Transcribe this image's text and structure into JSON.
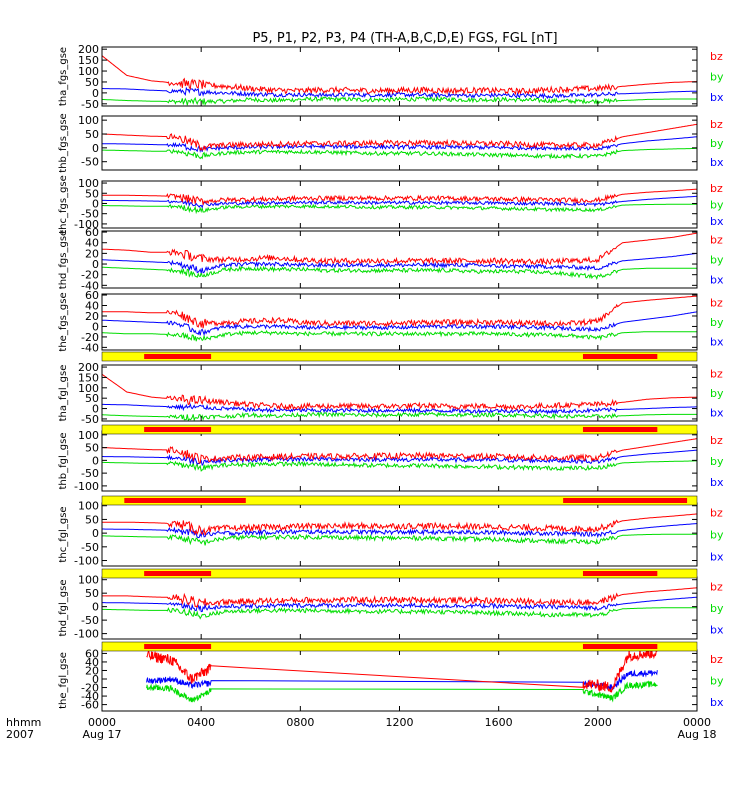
{
  "title": "P5, P1, P2, P3, P4 (TH-A,B,C,D,E) FGS, FGL [nT]",
  "time_axis": {
    "corner_label_top": "hhmm",
    "corner_label_bottom": "2007",
    "ticks": [
      {
        "hour": 0,
        "label": "0000",
        "sublabel": "Aug 17"
      },
      {
        "hour": 4,
        "label": "0400",
        "sublabel": ""
      },
      {
        "hour": 8,
        "label": "0800",
        "sublabel": ""
      },
      {
        "hour": 12,
        "label": "1200",
        "sublabel": ""
      },
      {
        "hour": 16,
        "label": "1600",
        "sublabel": ""
      },
      {
        "hour": 20,
        "label": "2000",
        "sublabel": ""
      },
      {
        "hour": 24,
        "label": "0000",
        "sublabel": "Aug 18"
      }
    ]
  },
  "colors": {
    "bx": "#0000ff",
    "by": "#00dd00",
    "bz": "#ff0000",
    "bar_bg": "#ffff00",
    "bar_fg": "#ff0000"
  },
  "legend_labels": {
    "bz": "bz",
    "by": "by",
    "bx": "bx"
  },
  "chart_data": [
    {
      "type": "line",
      "ylabel": "tha_fgs_gse",
      "ylim": [
        -60,
        210
      ],
      "yticks": [
        -50,
        0,
        50,
        100,
        150,
        200
      ],
      "series": [
        {
          "name": "bz",
          "values": [
            170,
            80,
            55,
            45,
            38,
            30,
            20,
            12,
            10,
            14,
            12,
            10,
            12,
            14,
            10,
            12,
            10,
            8,
            14,
            18,
            20,
            30,
            40,
            48,
            52
          ]
        },
        {
          "name": "by",
          "values": [
            -30,
            -35,
            -38,
            -40,
            -40,
            -38,
            -30,
            -35,
            -30,
            -28,
            -30,
            -32,
            -30,
            -28,
            -30,
            -32,
            -30,
            -32,
            -36,
            -38,
            -38,
            -35,
            -30,
            -28,
            -28
          ]
        },
        {
          "name": "bx",
          "values": [
            20,
            18,
            12,
            8,
            5,
            0,
            -5,
            -8,
            -8,
            -10,
            -8,
            -10,
            -8,
            -10,
            -10,
            -12,
            -10,
            -12,
            -14,
            -12,
            -8,
            -4,
            0,
            5,
            8
          ]
        }
      ]
    },
    {
      "type": "line",
      "ylabel": "thb_fgs_gse",
      "ylim": [
        -80,
        115
      ],
      "yticks": [
        -50,
        0,
        50,
        100
      ],
      "series": [
        {
          "name": "bz",
          "values": [
            50,
            46,
            42,
            40,
            5,
            10,
            12,
            14,
            15,
            16,
            16,
            17,
            18,
            18,
            18,
            16,
            15,
            12,
            10,
            10,
            10,
            40,
            55,
            70,
            85
          ]
        },
        {
          "name": "by",
          "values": [
            -8,
            -10,
            -12,
            -12,
            -30,
            -18,
            -15,
            -14,
            -14,
            -16,
            -18,
            -20,
            -20,
            -20,
            -22,
            -24,
            -26,
            -28,
            -30,
            -30,
            -30,
            -10,
            -6,
            -4,
            -2
          ]
        },
        {
          "name": "bx",
          "values": [
            15,
            14,
            12,
            10,
            -5,
            0,
            2,
            4,
            5,
            5,
            4,
            4,
            3,
            3,
            2,
            2,
            1,
            0,
            0,
            -2,
            -5,
            15,
            25,
            32,
            40
          ]
        }
      ]
    },
    {
      "type": "line",
      "ylabel": "thc_fgs_gse",
      "ylim": [
        -120,
        110
      ],
      "yticks": [
        -100,
        -50,
        0,
        50,
        100
      ],
      "series": [
        {
          "name": "bz",
          "values": [
            40,
            40,
            38,
            35,
            10,
            18,
            20,
            22,
            25,
            26,
            26,
            26,
            26,
            26,
            25,
            24,
            22,
            20,
            18,
            16,
            16,
            45,
            55,
            62,
            70
          ]
        },
        {
          "name": "by",
          "values": [
            -10,
            -12,
            -14,
            -14,
            -35,
            -18,
            -15,
            -14,
            -14,
            -15,
            -16,
            -18,
            -18,
            -18,
            -20,
            -22,
            -24,
            -26,
            -30,
            -30,
            -32,
            -8,
            -5,
            -4,
            -4
          ]
        },
        {
          "name": "bx",
          "values": [
            15,
            14,
            12,
            10,
            -5,
            0,
            2,
            4,
            5,
            5,
            5,
            4,
            4,
            4,
            3,
            3,
            2,
            0,
            0,
            -2,
            -5,
            10,
            20,
            28,
            35
          ]
        }
      ]
    },
    {
      "type": "line",
      "ylabel": "thd_fgs_gse",
      "ylim": [
        -45,
        62
      ],
      "yticks": [
        -40,
        -20,
        0,
        20,
        40,
        60
      ],
      "series": [
        {
          "name": "bz",
          "values": [
            28,
            26,
            22,
            22,
            10,
            8,
            10,
            12,
            8,
            6,
            6,
            6,
            6,
            6,
            6,
            6,
            6,
            5,
            4,
            6,
            8,
            40,
            45,
            50,
            58
          ]
        },
        {
          "name": "by",
          "values": [
            -6,
            -8,
            -10,
            -12,
            -22,
            -10,
            -8,
            -10,
            -10,
            -12,
            -12,
            -12,
            -12,
            -12,
            -12,
            -14,
            -14,
            -14,
            -16,
            -20,
            -24,
            -10,
            -8,
            -8,
            -8
          ]
        },
        {
          "name": "bx",
          "values": [
            8,
            6,
            4,
            2,
            -12,
            -2,
            0,
            0,
            -2,
            -2,
            -2,
            -2,
            -2,
            -2,
            -2,
            -2,
            -4,
            -4,
            -5,
            -6,
            -8,
            6,
            10,
            14,
            20
          ]
        }
      ]
    },
    {
      "type": "line",
      "ylabel": "the_fgs_gse",
      "ylim": [
        -45,
        62
      ],
      "yticks": [
        -40,
        -20,
        0,
        20,
        40,
        60
      ],
      "series": [
        {
          "name": "bz",
          "values": [
            28,
            28,
            26,
            26,
            5,
            8,
            10,
            12,
            8,
            6,
            6,
            6,
            6,
            8,
            8,
            8,
            8,
            6,
            6,
            6,
            10,
            45,
            50,
            54,
            58
          ]
        },
        {
          "name": "by",
          "values": [
            -12,
            -14,
            -14,
            -16,
            -25,
            -15,
            -12,
            -12,
            -14,
            -14,
            -14,
            -14,
            -14,
            -14,
            -14,
            -14,
            -14,
            -16,
            -16,
            -18,
            -22,
            -12,
            -10,
            -10,
            -10
          ]
        },
        {
          "name": "bx",
          "values": [
            12,
            10,
            8,
            6,
            -12,
            0,
            0,
            0,
            -2,
            -2,
            -2,
            -2,
            -2,
            0,
            0,
            0,
            0,
            -2,
            -2,
            -4,
            -6,
            8,
            14,
            20,
            28
          ]
        }
      ]
    },
    {
      "type": "line",
      "ylabel": "tha_fgl_gse",
      "ylim": [
        -60,
        210
      ],
      "yticks": [
        -50,
        0,
        50,
        100,
        150,
        200
      ],
      "series": [
        {
          "name": "bz",
          "values": [
            165,
            80,
            55,
            45,
            38,
            30,
            18,
            12,
            10,
            12,
            12,
            10,
            12,
            14,
            10,
            12,
            10,
            8,
            14,
            18,
            20,
            30,
            45,
            52,
            55
          ]
        },
        {
          "name": "by",
          "values": [
            -30,
            -35,
            -38,
            -40,
            -40,
            -38,
            -30,
            -35,
            -30,
            -28,
            -30,
            -32,
            -30,
            -28,
            -30,
            -32,
            -30,
            -32,
            -36,
            -38,
            -38,
            -35,
            -30,
            -28,
            -28
          ]
        },
        {
          "name": "bx",
          "values": [
            20,
            18,
            12,
            8,
            5,
            0,
            -5,
            -8,
            -8,
            -10,
            -8,
            -10,
            -8,
            -10,
            -10,
            -12,
            -10,
            -12,
            -14,
            -12,
            -8,
            -4,
            0,
            5,
            8
          ]
        }
      ]
    },
    {
      "type": "line",
      "ylabel": "thb_fgl_gse",
      "ylim": [
        -120,
        115
      ],
      "yticks": [
        -100,
        -50,
        0,
        50,
        100
      ],
      "series": [
        {
          "name": "bz",
          "values": [
            50,
            46,
            42,
            40,
            5,
            10,
            12,
            14,
            15,
            16,
            16,
            17,
            18,
            18,
            18,
            16,
            15,
            12,
            10,
            10,
            10,
            40,
            55,
            70,
            85
          ]
        },
        {
          "name": "by",
          "values": [
            -8,
            -10,
            -12,
            -12,
            -30,
            -18,
            -15,
            -14,
            -14,
            -16,
            -18,
            -20,
            -20,
            -20,
            -22,
            -24,
            -26,
            -28,
            -30,
            -30,
            -30,
            -10,
            -6,
            -4,
            -2
          ]
        },
        {
          "name": "bx",
          "values": [
            15,
            14,
            12,
            10,
            -5,
            0,
            2,
            4,
            5,
            5,
            4,
            4,
            3,
            3,
            2,
            2,
            1,
            0,
            0,
            -2,
            -5,
            15,
            25,
            32,
            40
          ]
        }
      ]
    },
    {
      "type": "line",
      "ylabel": "thc_fgl_gse",
      "ylim": [
        -120,
        110
      ],
      "yticks": [
        -100,
        -50,
        0,
        50,
        100
      ],
      "series": [
        {
          "name": "bz",
          "values": [
            40,
            40,
            38,
            35,
            10,
            18,
            20,
            22,
            25,
            26,
            26,
            26,
            26,
            26,
            25,
            24,
            22,
            20,
            18,
            16,
            16,
            45,
            55,
            62,
            70
          ]
        },
        {
          "name": "by",
          "values": [
            -10,
            -12,
            -14,
            -14,
            -35,
            -18,
            -15,
            -14,
            -14,
            -15,
            -16,
            -18,
            -18,
            -18,
            -20,
            -22,
            -24,
            -26,
            -30,
            -30,
            -32,
            -8,
            -5,
            -4,
            -4
          ]
        },
        {
          "name": "bx",
          "values": [
            15,
            14,
            12,
            10,
            -5,
            0,
            2,
            4,
            5,
            5,
            5,
            4,
            4,
            4,
            3,
            3,
            2,
            0,
            0,
            -2,
            -5,
            10,
            20,
            28,
            35
          ]
        }
      ]
    },
    {
      "type": "line",
      "ylabel": "thd_fgl_gse",
      "ylim": [
        -120,
        110
      ],
      "yticks": [
        -100,
        -50,
        0,
        50,
        100
      ],
      "series": [
        {
          "name": "bz",
          "values": [
            40,
            40,
            36,
            34,
            10,
            18,
            20,
            22,
            24,
            25,
            25,
            25,
            25,
            25,
            24,
            23,
            22,
            20,
            18,
            16,
            16,
            45,
            55,
            62,
            70
          ]
        },
        {
          "name": "by",
          "values": [
            -10,
            -12,
            -14,
            -14,
            -35,
            -18,
            -15,
            -14,
            -14,
            -15,
            -16,
            -18,
            -18,
            -18,
            -20,
            -22,
            -24,
            -26,
            -30,
            -30,
            -32,
            -8,
            -5,
            -4,
            -4
          ]
        },
        {
          "name": "bx",
          "values": [
            15,
            14,
            12,
            10,
            -5,
            0,
            2,
            4,
            5,
            5,
            5,
            4,
            4,
            4,
            3,
            3,
            2,
            0,
            0,
            -2,
            -5,
            10,
            20,
            28,
            35
          ]
        }
      ]
    },
    {
      "type": "line",
      "ylabel": "the_fgl_gse",
      "ylim": [
        -75,
        68
      ],
      "yticks": [
        -60,
        -40,
        -20,
        0,
        20,
        40,
        60
      ],
      "segments_hours": [
        [
          1.8,
          4.4
        ],
        [
          19.4,
          22.4
        ]
      ],
      "series": [
        {
          "name": "bz",
          "values": [
            [
              1.8,
              55
            ],
            [
              2.8,
              45
            ],
            [
              3.6,
              0
            ],
            [
              4.4,
              25
            ],
            [
              19.4,
              -10
            ],
            [
              20.6,
              -20
            ],
            [
              21.2,
              55
            ],
            [
              22.4,
              62
            ]
          ]
        },
        {
          "name": "by",
          "values": [
            [
              1.8,
              -20
            ],
            [
              2.8,
              -22
            ],
            [
              3.6,
              -50
            ],
            [
              4.4,
              -28
            ],
            [
              19.4,
              -28
            ],
            [
              20.6,
              -45
            ],
            [
              21.2,
              -15
            ],
            [
              22.4,
              -12
            ]
          ]
        },
        {
          "name": "bx",
          "values": [
            [
              1.8,
              -5
            ],
            [
              2.8,
              0
            ],
            [
              3.6,
              -15
            ],
            [
              4.4,
              -10
            ],
            [
              19.4,
              -10
            ],
            [
              20.6,
              -20
            ],
            [
              21.2,
              12
            ],
            [
              22.4,
              15
            ]
          ]
        }
      ]
    }
  ],
  "mode_bars": [
    {
      "after_panel": 4,
      "red_hours": [
        [
          1.7,
          4.4
        ],
        [
          19.4,
          22.4
        ]
      ]
    },
    {
      "after_panel": 5,
      "red_hours": [
        [
          1.7,
          4.4
        ],
        [
          19.4,
          22.4
        ]
      ]
    },
    {
      "after_panel": 6,
      "red_hours": [
        [
          0.9,
          5.8
        ],
        [
          18.6,
          23.6
        ]
      ]
    },
    {
      "after_panel": 7,
      "red_hours": [
        [
          1.7,
          4.4
        ],
        [
          19.4,
          22.4
        ]
      ]
    },
    {
      "after_panel": 8,
      "red_hours": [
        [
          1.7,
          4.4
        ],
        [
          19.4,
          22.4
        ]
      ]
    }
  ]
}
